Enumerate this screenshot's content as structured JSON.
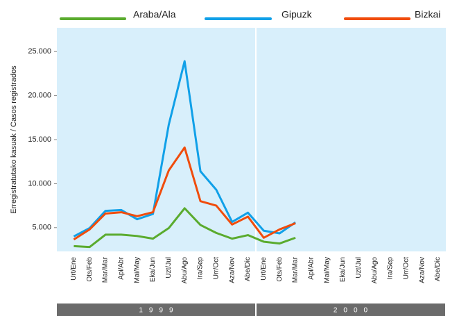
{
  "chart_data": {
    "type": "line",
    "y_label": "Erregistratutako kasuak / Casos registrados",
    "categories": [
      "Urt/Ene",
      "Ots/Feb",
      "Mar/Mar",
      "Api/Abr",
      "Mai/May",
      "Eka/Jun",
      "Uzt/Jul",
      "Abu/Ago",
      "Ira/Sep",
      "Urr/Oct",
      "Aza/Nov",
      "Abe/Dic",
      "Urt/Ene",
      "Ots/Feb",
      "Mar/Mar",
      "Api/Abr",
      "Mai/May",
      "Eka/Jun",
      "Uzt/Jul",
      "Abu/Ago",
      "Ira/Sep",
      "Urr/Oct",
      "Aza/Nov",
      "Abe/Dic"
    ],
    "groups": [
      {
        "label": "1999",
        "start": 0,
        "end": 11
      },
      {
        "label": "2000",
        "start": 12,
        "end": 23
      }
    ],
    "series": [
      {
        "name": "Araba/Ala",
        "color": "#5aab2e",
        "values": [
          2900,
          2800,
          4200,
          4200,
          4050,
          3750,
          4950,
          7200,
          5300,
          4400,
          3750,
          4150,
          3400,
          3200,
          3850,
          null,
          null,
          null,
          null,
          null,
          null,
          null,
          null,
          null
        ]
      },
      {
        "name": "Gipuzk",
        "color": "#10a0e8",
        "values": [
          4000,
          4950,
          6900,
          7000,
          5950,
          6550,
          16700,
          23900,
          11400,
          9300,
          5650,
          6700,
          4650,
          4350,
          5600,
          null,
          null,
          null,
          null,
          null,
          null,
          null,
          null,
          null
        ]
      },
      {
        "name": "Bizkai",
        "color": "#f04c0c",
        "values": [
          3650,
          4800,
          6600,
          6750,
          6300,
          6750,
          11500,
          14100,
          8000,
          7500,
          5350,
          6250,
          3850,
          4800,
          5500,
          null,
          null,
          null,
          null,
          null,
          null,
          null,
          null,
          null
        ]
      }
    ],
    "ylim": [
      2300,
      27700
    ],
    "yticks": [
      {
        "value": 5000,
        "label": "5.000"
      },
      {
        "value": 10000,
        "label": "10.000"
      },
      {
        "value": 15000,
        "label": "15.000"
      },
      {
        "value": 20000,
        "label": "20.000"
      },
      {
        "value": 25000,
        "label": "25.000"
      }
    ],
    "legend": "top",
    "background": "#d8effb"
  }
}
